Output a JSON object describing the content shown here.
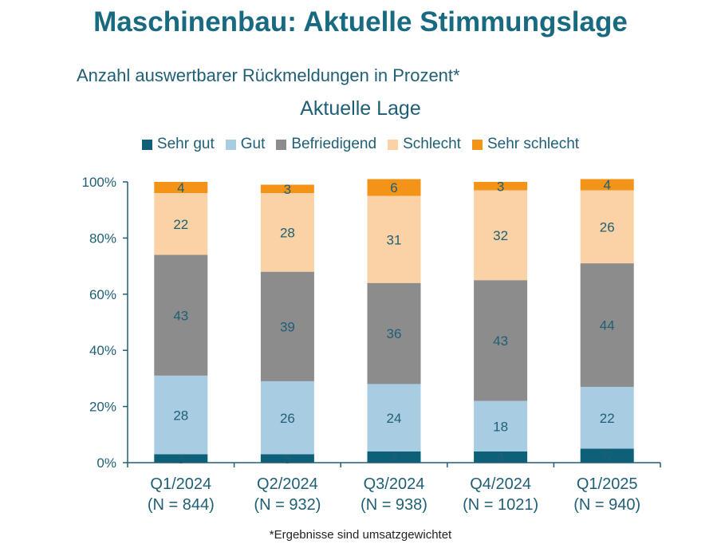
{
  "page": {
    "title": "Maschinenbau: Aktuelle Stimmungslage",
    "subtitle": "Anzahl auswertbarer Rückmeldungen in Prozent*",
    "footnote": "*Ergebnisse sind umsatzgewichtet"
  },
  "chart_data": {
    "type": "bar",
    "stacked": true,
    "title": "Aktuelle Lage",
    "categories": [
      "Q1/2024",
      "Q2/2024",
      "Q3/2024",
      "Q4/2024",
      "Q1/2025"
    ],
    "category_sublabels": [
      "(N = 844)",
      "(N = 932)",
      "(N = 938)",
      "(N = 1021)",
      "(N = 940)"
    ],
    "y_ticks": [
      "0%",
      "20%",
      "40%",
      "60%",
      "80%",
      "100%"
    ],
    "ylim": [
      0,
      100
    ],
    "legend_position": "top",
    "grid": false,
    "series": [
      {
        "name": "Sehr gut",
        "color": "#0e6078",
        "values": [
          3,
          3,
          4,
          4,
          5
        ]
      },
      {
        "name": "Gut",
        "color": "#a8cde3",
        "values": [
          28,
          26,
          24,
          18,
          22
        ]
      },
      {
        "name": "Befriedigend",
        "color": "#8c8c8c",
        "values": [
          43,
          39,
          36,
          43,
          44
        ]
      },
      {
        "name": "Schlecht",
        "color": "#fbd2a5",
        "values": [
          22,
          28,
          31,
          32,
          26
        ]
      },
      {
        "name": "Sehr schlecht",
        "color": "#f39419",
        "values": [
          4,
          3,
          6,
          3,
          4
        ]
      }
    ],
    "label_color": "#1f5f75",
    "axis_color": "#1f5f75"
  }
}
